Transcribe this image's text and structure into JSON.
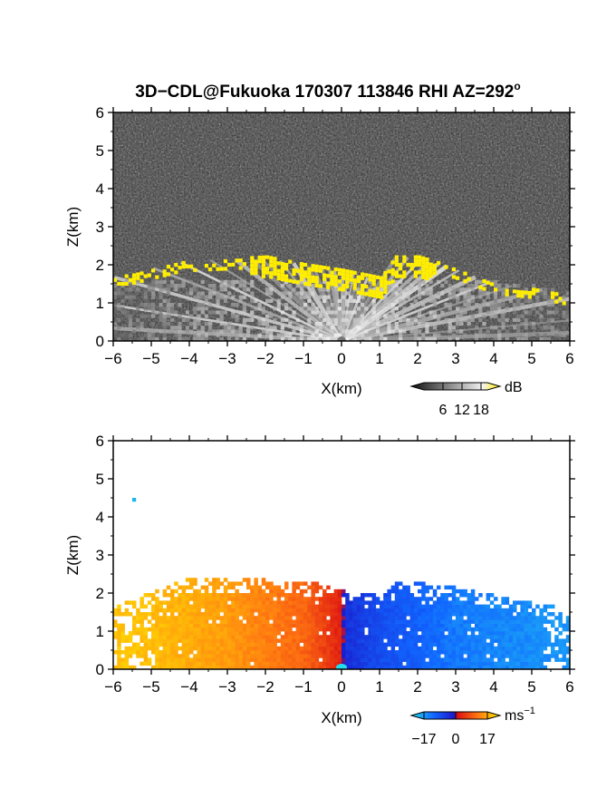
{
  "title": {
    "main": "3D−CDL@Fukuoka 170307 113846 RHI AZ=292",
    "sup": "o"
  },
  "chart_data": [
    {
      "type": "heatmap",
      "name": "reflectivity",
      "xlabel": "X(km)",
      "ylabel": "Z(km)",
      "xlim": [
        -6,
        6
      ],
      "ylim": [
        0,
        6
      ],
      "xticks": [
        "−6",
        "−5",
        "−4",
        "−3",
        "−2",
        "−1",
        "0",
        "1",
        "2",
        "3",
        "4",
        "5",
        "6"
      ],
      "yticks": [
        "0",
        "1",
        "2",
        "3",
        "4",
        "5",
        "6"
      ],
      "colorbar": {
        "unit": "dB",
        "ticks": [
          "6",
          "12",
          "18"
        ],
        "tick_values": [
          6,
          12,
          18
        ],
        "range": [
          0,
          20
        ],
        "colors": [
          "#111111",
          "#ffffff",
          "#ffee00"
        ]
      },
      "background": "noise",
      "cloud_top": [
        {
          "x": -5.6,
          "z": 1.75
        },
        {
          "x": -4.2,
          "z": 2.1
        },
        {
          "x": -3.0,
          "z": 2.15
        },
        {
          "x": -2.0,
          "z": 2.2
        },
        {
          "x": -1.0,
          "z": 2.0
        },
        {
          "x": 0.0,
          "z": 1.85
        },
        {
          "x": 1.0,
          "z": 1.65
        },
        {
          "x": 1.4,
          "z": 2.2
        },
        {
          "x": 2.0,
          "z": 2.2
        },
        {
          "x": 3.0,
          "z": 1.9
        },
        {
          "x": 4.0,
          "z": 1.5
        },
        {
          "x": 5.0,
          "z": 1.4
        },
        {
          "x": 6.0,
          "z": 1.2
        }
      ]
    },
    {
      "type": "heatmap",
      "name": "doppler velocity",
      "xlabel": "X(km)",
      "ylabel": "Z(km)",
      "xlim": [
        -6,
        6
      ],
      "ylim": [
        0,
        6
      ],
      "xticks": [
        "−6",
        "−5",
        "−4",
        "−3",
        "−2",
        "−1",
        "0",
        "1",
        "2",
        "3",
        "4",
        "5",
        "6"
      ],
      "yticks": [
        "0",
        "1",
        "2",
        "3",
        "4",
        "5",
        "6"
      ],
      "colorbar": {
        "unit": "ms",
        "unit_sup": "−1",
        "ticks": [
          "−17",
          "0",
          "17"
        ],
        "tick_values": [
          -17,
          0,
          17
        ],
        "range": [
          -17,
          17
        ],
        "colors": [
          "#22ddee",
          "#1166ff",
          "#1a1acc",
          "#dd1111",
          "#ff7711",
          "#ffee00"
        ]
      },
      "velocity_profile": [
        {
          "x": -5.5,
          "v": 14
        },
        {
          "x": -3.0,
          "v": 11
        },
        {
          "x": -1.0,
          "v": 7
        },
        {
          "x": -0.1,
          "v": 2
        },
        {
          "x": 0.1,
          "v": -3
        },
        {
          "x": 1.0,
          "v": -6
        },
        {
          "x": 3.0,
          "v": -10
        },
        {
          "x": 6.0,
          "v": -12
        }
      ],
      "echo_top": [
        {
          "x": -5.8,
          "z": 1.7
        },
        {
          "x": -4.0,
          "z": 2.35
        },
        {
          "x": -2.0,
          "z": 2.3
        },
        {
          "x": -0.5,
          "z": 2.2
        },
        {
          "x": 0.0,
          "z": 2.0
        },
        {
          "x": 1.0,
          "z": 1.9
        },
        {
          "x": 1.5,
          "z": 2.3
        },
        {
          "x": 3.0,
          "z": 2.1
        },
        {
          "x": 4.5,
          "z": 1.8
        },
        {
          "x": 5.5,
          "z": 1.6
        },
        {
          "x": 6.0,
          "z": 1.3
        }
      ]
    }
  ]
}
